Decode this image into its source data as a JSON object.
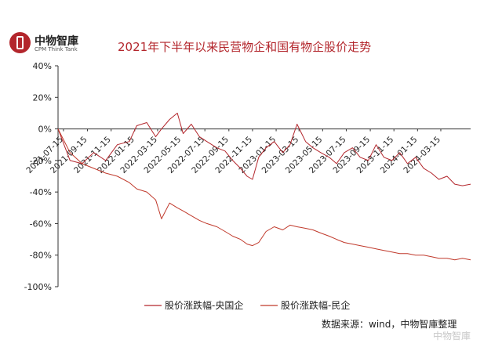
{
  "logo": {
    "cn": "中物智庫",
    "en": "CPM Think Tank"
  },
  "source": "数据来源：wind，中物智庫整理",
  "watermark": "中物智庫",
  "colors": {
    "title": "#b3262c",
    "series_soe": "#b3262c",
    "series_private": "#c0392b",
    "axis": "#333333"
  },
  "chart_data": {
    "type": "line",
    "title": "2021年下半年以来民营物企和国有物企股价走势",
    "xlabel": "",
    "ylabel": "",
    "ylim": [
      -100,
      40
    ],
    "yticks": [
      "40%",
      "20%",
      "0%",
      "-20%",
      "-40%",
      "-60%",
      "-80%",
      "-100%"
    ],
    "ytick_values": [
      40,
      20,
      0,
      -20,
      -40,
      -60,
      -80,
      -100
    ],
    "x_start": "2021-07-01",
    "x_end": "2024-05-31",
    "xticks": [
      "2021-07-15",
      "2021-09-15",
      "2021-11-15",
      "2022-01-15",
      "2022-03-15",
      "2022-05-15",
      "2022-07-15",
      "2022-09-15",
      "2022-11-15",
      "2023-01-15",
      "2023-03-15",
      "2023-05-15",
      "2023-07-15",
      "2023-09-15",
      "2023-11-15",
      "2024-01-15",
      "2024-03-15"
    ],
    "legend_position": "bottom",
    "grid": false,
    "series": [
      {
        "name": "股价涨跌幅-央国企",
        "x": [
          "2021-07-01",
          "2021-08-01",
          "2021-09-01",
          "2021-10-01",
          "2021-11-01",
          "2021-12-01",
          "2022-01-01",
          "2022-01-20",
          "2022-02-15",
          "2022-03-10",
          "2022-03-25",
          "2022-04-15",
          "2022-05-05",
          "2022-05-20",
          "2022-06-10",
          "2022-07-01",
          "2022-07-20",
          "2022-08-15",
          "2022-09-05",
          "2022-09-25",
          "2022-10-15",
          "2022-11-01",
          "2022-11-15",
          "2022-12-01",
          "2022-12-20",
          "2023-01-10",
          "2023-02-01",
          "2023-02-20",
          "2023-03-10",
          "2023-04-01",
          "2023-04-20",
          "2023-05-10",
          "2023-06-01",
          "2023-06-20",
          "2023-07-10",
          "2023-07-31",
          "2023-08-20",
          "2023-09-10",
          "2023-09-30",
          "2023-10-20",
          "2023-11-10",
          "2023-11-30",
          "2023-12-20",
          "2024-01-10",
          "2024-01-31",
          "2024-02-20",
          "2024-03-10",
          "2024-03-31",
          "2024-04-20",
          "2024-05-10",
          "2024-05-31"
        ],
        "values": [
          0,
          -20,
          -22,
          -15,
          -20,
          -10,
          -8,
          2,
          4,
          -5,
          0,
          6,
          10,
          -3,
          3,
          -5,
          -8,
          -12,
          -14,
          -20,
          -25,
          -30,
          -32,
          -18,
          -12,
          -8,
          -15,
          -10,
          3,
          -8,
          -12,
          -15,
          -18,
          -22,
          -15,
          -12,
          -18,
          -20,
          -10,
          -18,
          -20,
          -15,
          -22,
          -18,
          -25,
          -28,
          -32,
          -30,
          -35,
          -36,
          -35
        ]
      },
      {
        "name": "股价涨跌幅-民企",
        "x": [
          "2021-07-01",
          "2021-08-01",
          "2021-09-01",
          "2021-10-01",
          "2021-11-01",
          "2021-12-01",
          "2022-01-01",
          "2022-01-20",
          "2022-02-15",
          "2022-03-10",
          "2022-03-25",
          "2022-04-15",
          "2022-05-05",
          "2022-05-20",
          "2022-06-10",
          "2022-07-01",
          "2022-07-20",
          "2022-08-15",
          "2022-09-05",
          "2022-09-25",
          "2022-10-15",
          "2022-11-01",
          "2022-11-15",
          "2022-12-01",
          "2022-12-20",
          "2023-01-10",
          "2023-02-01",
          "2023-02-20",
          "2023-03-10",
          "2023-04-01",
          "2023-04-20",
          "2023-05-10",
          "2023-06-01",
          "2023-06-20",
          "2023-07-10",
          "2023-07-31",
          "2023-08-20",
          "2023-09-10",
          "2023-09-30",
          "2023-10-20",
          "2023-11-10",
          "2023-11-30",
          "2023-12-20",
          "2024-01-10",
          "2024-01-31",
          "2024-02-20",
          "2024-03-10",
          "2024-03-31",
          "2024-04-20",
          "2024-05-10",
          "2024-05-31"
        ],
        "values": [
          0,
          -15,
          -22,
          -25,
          -28,
          -30,
          -34,
          -38,
          -40,
          -45,
          -57,
          -47,
          -50,
          -52,
          -55,
          -58,
          -60,
          -62,
          -65,
          -68,
          -70,
          -73,
          -74,
          -72,
          -65,
          -62,
          -64,
          -61,
          -62,
          -63,
          -64,
          -66,
          -68,
          -70,
          -72,
          -73,
          -74,
          -75,
          -76,
          -77,
          -78,
          -79,
          -79,
          -80,
          -80,
          -81,
          -82,
          -82,
          -83,
          -82,
          -83
        ]
      }
    ]
  }
}
